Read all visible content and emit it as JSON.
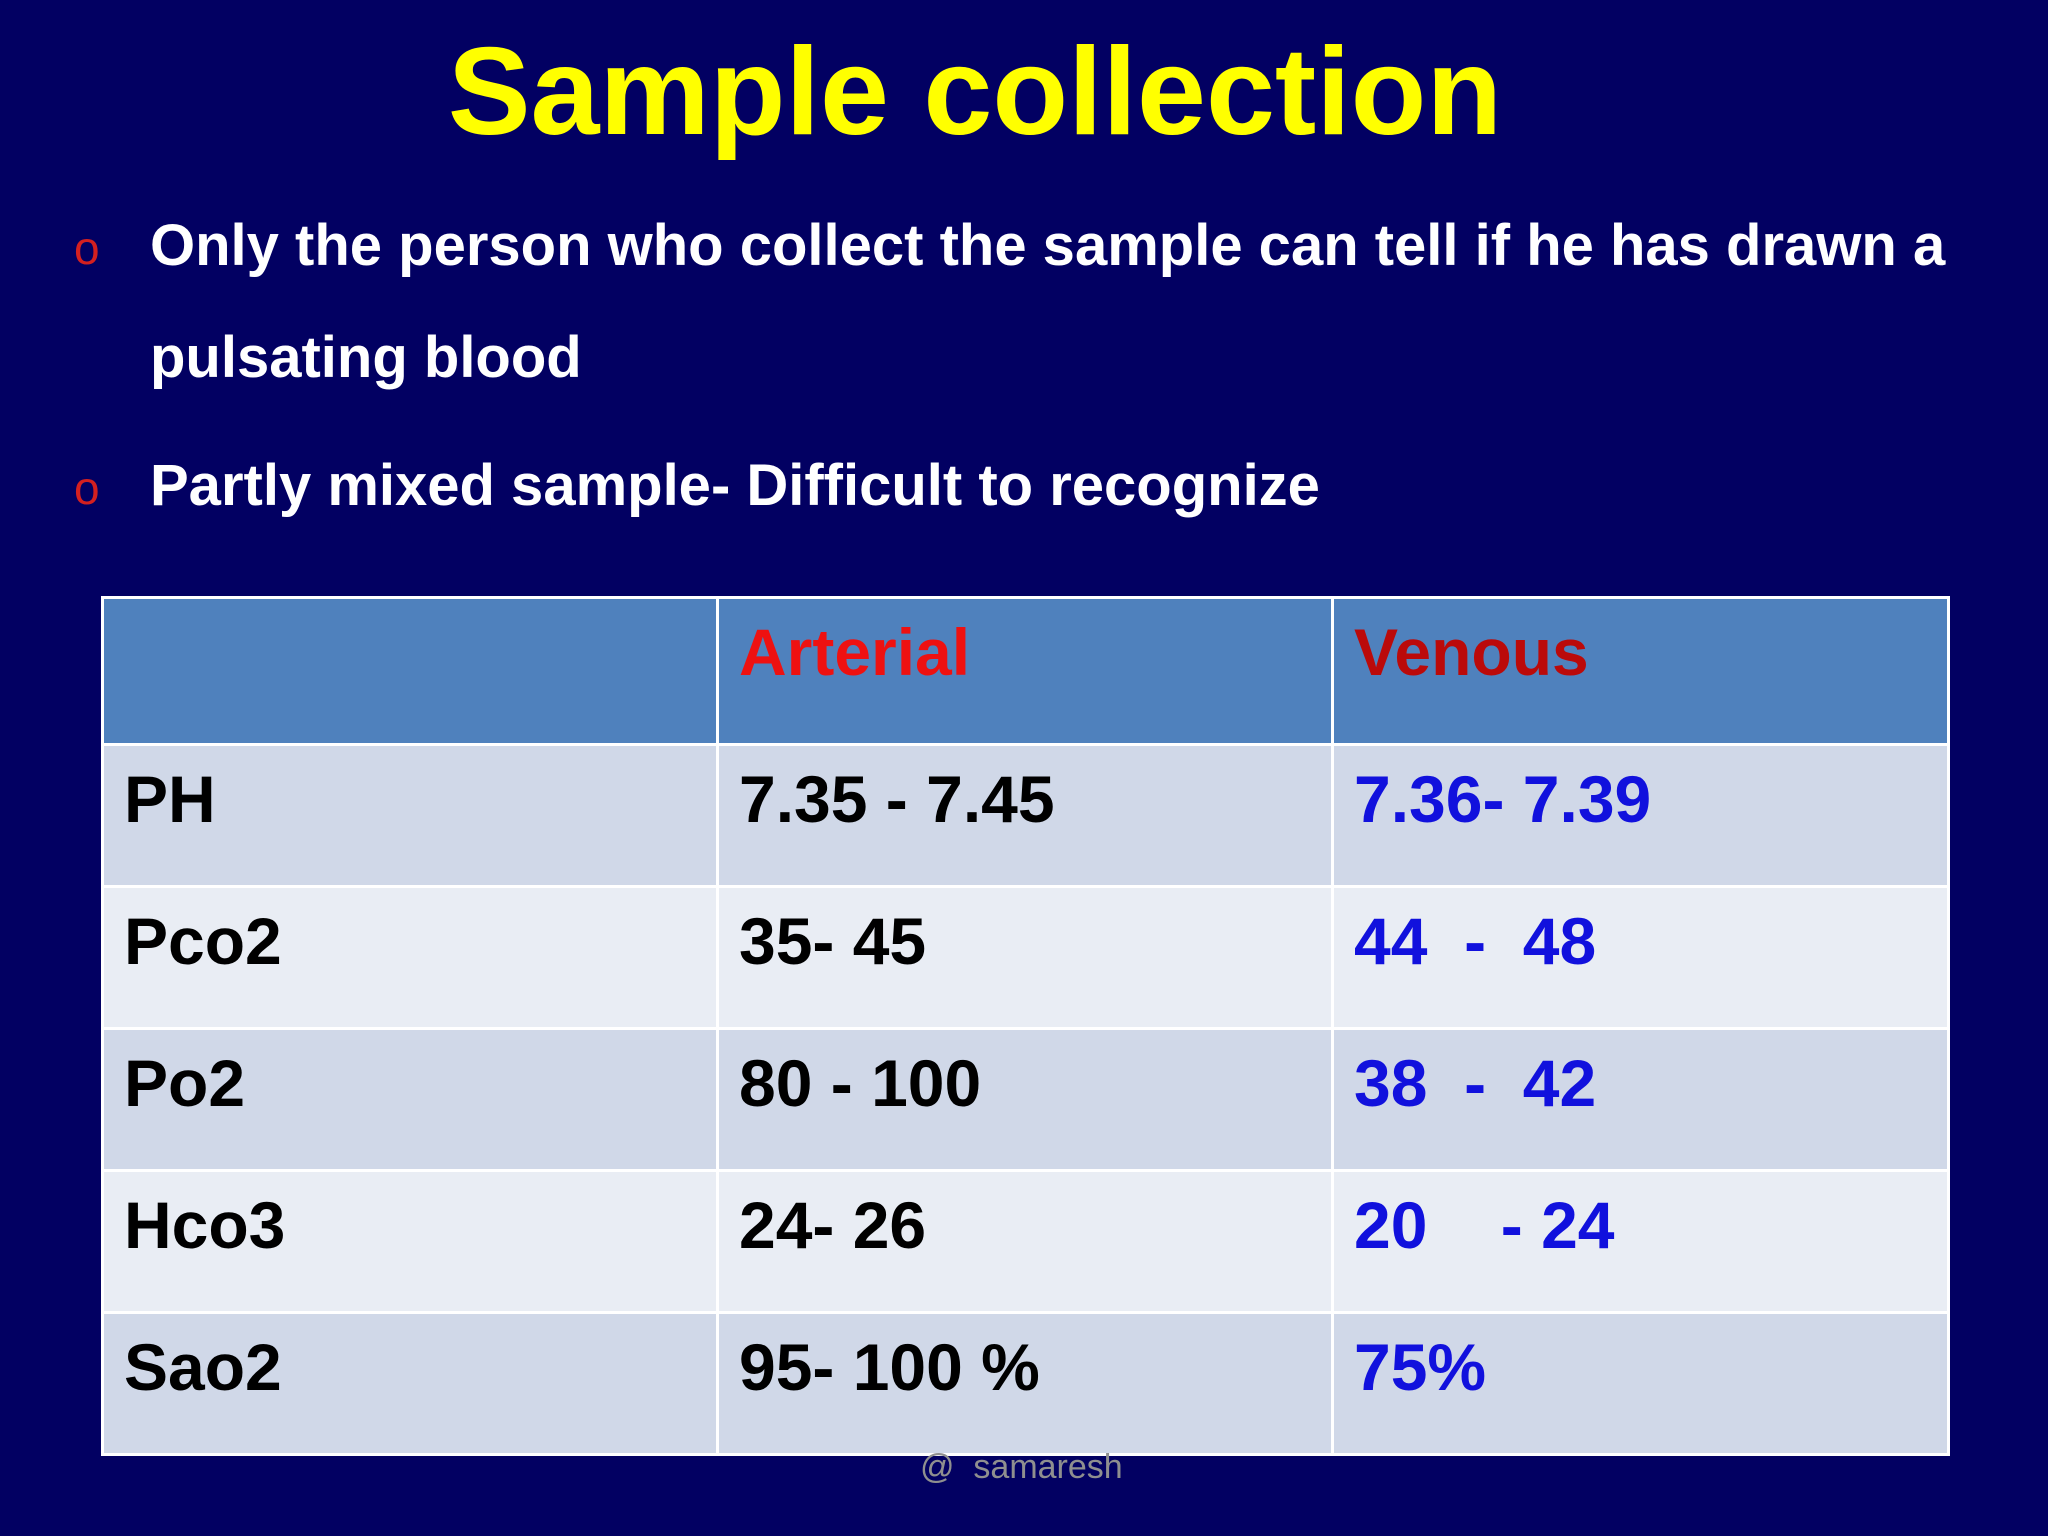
{
  "slide": {
    "title": "Sample collection",
    "bullet_marker": "o",
    "bullets": [
      "Only the person who collect the sample can tell if he has drawn a pulsating blood",
      "Partly mixed sample- Difficult to recognize"
    ],
    "watermark": "@  samaresh"
  },
  "table": {
    "headers": [
      "",
      "Arterial",
      "Venous"
    ],
    "rows": [
      {
        "label": "PH",
        "arterial": "7.35 - 7.45",
        "venous": "7.36- 7.39"
      },
      {
        "label": "Pco2",
        "arterial": "35- 45",
        "venous": "44  -  48"
      },
      {
        "label": "Po2",
        "arterial": "80 - 100",
        "venous": "38  -  42"
      },
      {
        "label": "Hco3",
        "arterial": "24- 26",
        "venous": "20    - 24"
      },
      {
        "label": "Sao2",
        "arterial": "95- 100 %",
        "venous": "75%"
      }
    ]
  },
  "colors": {
    "background": "#020062",
    "title": "#ffff00",
    "bullet_text": "#ffffff",
    "bullet_marker": "#d42020",
    "header_bg": "#4f81bd",
    "arterial_header": "#ee1111",
    "venous_header": "#bb0a0a",
    "venous_values": "#1111dd"
  }
}
